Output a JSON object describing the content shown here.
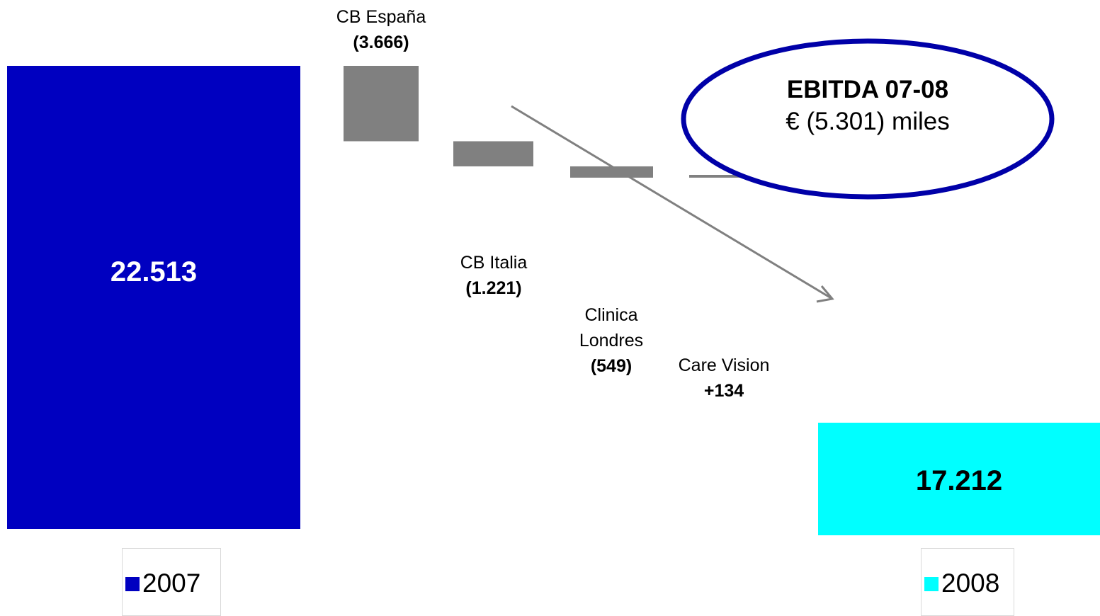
{
  "chart_data": {
    "type": "bar",
    "subtype": "waterfall",
    "categories": [
      "2007",
      "CB España",
      "CB Italia",
      "Clinica Londres",
      "Care Vision",
      "2008"
    ],
    "start": {
      "category": "2007",
      "value": 22513,
      "label": "22.513",
      "color": "#0000c0"
    },
    "changes": [
      {
        "category": "CB España",
        "name_lines": [
          "CB España"
        ],
        "value": -3666,
        "label": "(3.666)"
      },
      {
        "category": "CB Italia",
        "name_lines": [
          "CB Italia"
        ],
        "value": -1221,
        "label": "(1.221)"
      },
      {
        "category": "Clinica Londres",
        "name_lines": [
          "Clinica",
          "Londres"
        ],
        "value": -549,
        "label": "(549)"
      },
      {
        "category": "Care Vision",
        "name_lines": [
          "Care Vision"
        ],
        "value": 134,
        "label": "+134"
      }
    ],
    "end": {
      "category": "2008",
      "value": 17212,
      "label": "17.212",
      "color": "#00ffff"
    },
    "change_color": "#808080",
    "legend": [
      {
        "label": "2007",
        "color": "#0000c0"
      },
      {
        "label": "2008",
        "color": "#00ffff"
      }
    ],
    "callout": {
      "title": "EBITDA 07-08",
      "subtitle": "€ (5.301) miles",
      "border_color": "#0000a8"
    },
    "arrow_color": "#808080"
  }
}
